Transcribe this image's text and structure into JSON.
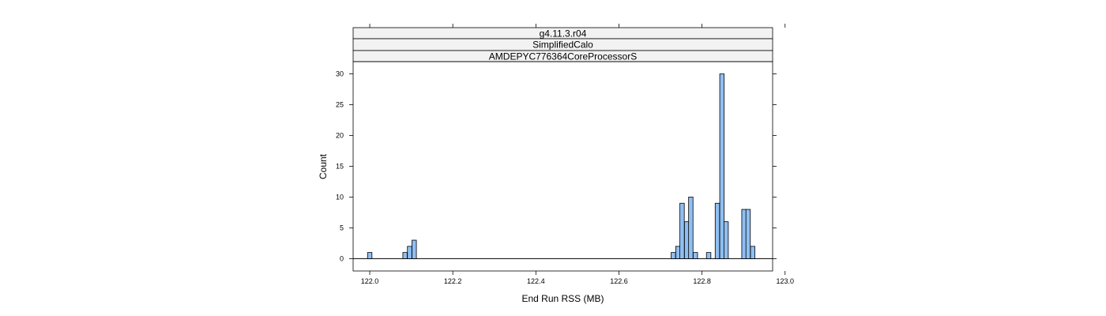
{
  "chart_data": {
    "type": "bar",
    "subtype": "histogram",
    "strips": [
      "g4.11.3.r04",
      "SimplifiedCalo",
      "AMDEPYC776364CoreProcessorS"
    ],
    "xlabel": "End Run RSS (MB)",
    "ylabel": "Count",
    "xlim": [
      121.96,
      122.97
    ],
    "ylim": [
      -2,
      32
    ],
    "xticks": [
      122.0,
      122.2,
      122.4,
      122.6,
      122.8,
      123.0
    ],
    "xtick_labels": [
      "122.0",
      "122.2",
      "122.4",
      "122.6",
      "122.8",
      "123.0"
    ],
    "yticks": [
      0,
      5,
      10,
      15,
      20,
      25,
      30
    ],
    "ytick_labels": [
      "0",
      "5",
      "10",
      "15",
      "20",
      "25",
      "30"
    ],
    "baseline_range": [
      121.96,
      122.97
    ],
    "bin_width": 0.0106,
    "bins": [
      {
        "x": 122.0,
        "count": 1
      },
      {
        "x": 122.085,
        "count": 1
      },
      {
        "x": 122.096,
        "count": 2
      },
      {
        "x": 122.107,
        "count": 3
      },
      {
        "x": 122.731,
        "count": 1
      },
      {
        "x": 122.742,
        "count": 2
      },
      {
        "x": 122.752,
        "count": 9
      },
      {
        "x": 122.763,
        "count": 6
      },
      {
        "x": 122.773,
        "count": 10
      },
      {
        "x": 122.784,
        "count": 1
      },
      {
        "x": 122.816,
        "count": 1
      },
      {
        "x": 122.837,
        "count": 9
      },
      {
        "x": 122.848,
        "count": 30
      },
      {
        "x": 122.858,
        "count": 6
      },
      {
        "x": 122.901,
        "count": 8
      },
      {
        "x": 122.911,
        "count": 8
      },
      {
        "x": 122.922,
        "count": 2
      }
    ],
    "bar_color": "#9ecae1",
    "bar_fill": "#8fbff2",
    "strip_color": "#f2f2f2",
    "grid": false,
    "legend": "none"
  }
}
